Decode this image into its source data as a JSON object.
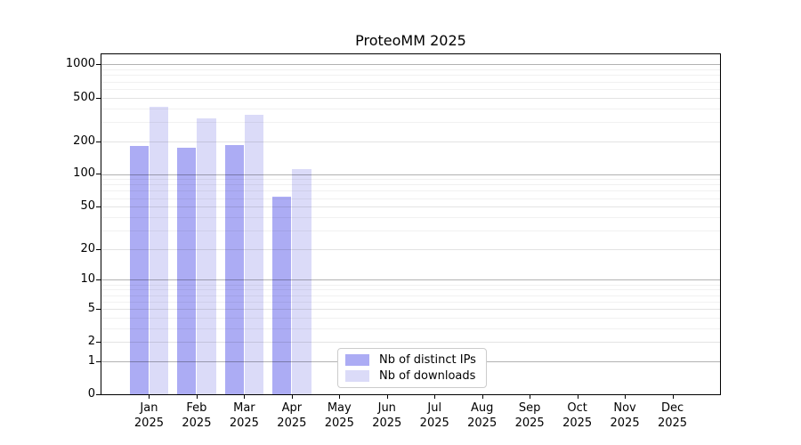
{
  "chart_data": {
    "type": "bar",
    "title": "ProteoMM 2025",
    "categories": [
      "Jan",
      "Feb",
      "Mar",
      "Apr",
      "May",
      "Jun",
      "Jul",
      "Aug",
      "Sep",
      "Oct",
      "Nov",
      "Dec"
    ],
    "category_sublabel": "2025",
    "series": [
      {
        "name": "Nb of distinct IPs",
        "color": "#acacf4",
        "values": [
          180,
          175,
          185,
          62,
          0,
          0,
          0,
          0,
          0,
          0,
          0,
          0
        ]
      },
      {
        "name": "Nb of downloads",
        "color": "#dbdbf8",
        "values": [
          410,
          320,
          350,
          110,
          0,
          0,
          0,
          0,
          0,
          0,
          0,
          0
        ]
      }
    ],
    "xlabel": "",
    "ylabel": "",
    "y_scale": "log10(1+x)",
    "y_ticks": [
      0,
      1,
      2,
      5,
      10,
      20,
      50,
      100,
      200,
      500,
      1000
    ],
    "y_minor_gridlines": [
      3,
      4,
      6,
      7,
      8,
      9,
      30,
      40,
      60,
      70,
      80,
      90,
      300,
      400,
      600,
      700,
      800,
      900
    ],
    "ylim": [
      0,
      1260
    ],
    "grid": true,
    "grid_color_major": "rgba(0,0,0,0.30)",
    "grid_color_labeled": "rgba(0,0,0,0.11)",
    "grid_color_minor": "rgba(0,0,0,0.055)",
    "legend_position": "lower-center-inside"
  }
}
